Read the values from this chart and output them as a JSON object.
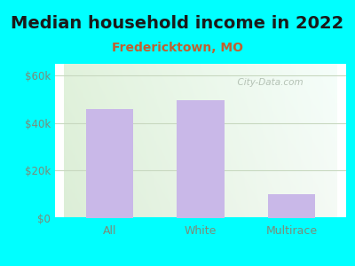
{
  "title": "Median household income in 2022",
  "subtitle": "Fredericktown, MO",
  "categories": [
    "All",
    "White",
    "Multirace"
  ],
  "values": [
    46000,
    49500,
    10000
  ],
  "bar_color": "#c9b8e8",
  "bg_color": "#00FFFF",
  "yticks": [
    0,
    20000,
    40000,
    60000
  ],
  "ytick_labels": [
    "$0",
    "$20k",
    "$40k",
    "$60k"
  ],
  "ylim": [
    0,
    65000
  ],
  "title_fontsize": 14,
  "subtitle_fontsize": 10,
  "subtitle_color": "#c06030",
  "tick_color": "#7a8c7a",
  "watermark_text": "  City-Data.com",
  "watermark_color": "#aab8aa",
  "grid_color": "#c8d8c0",
  "label_color": "#7a8c7a"
}
